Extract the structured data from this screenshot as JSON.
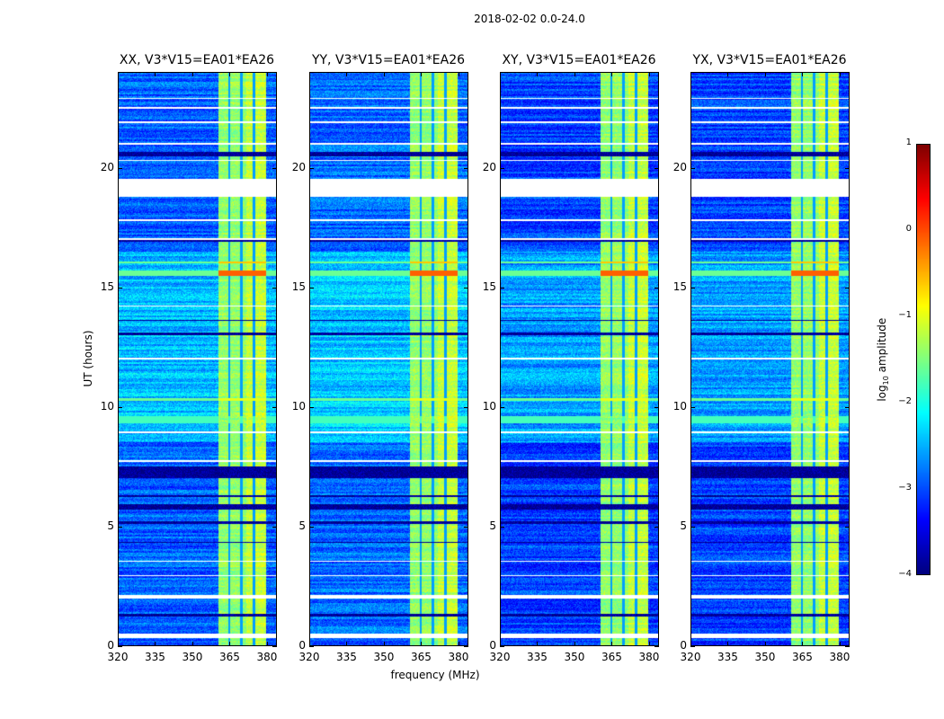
{
  "chart_data": {
    "type": "heatmap",
    "title": "2018-02-02 0.0-24.0",
    "xlabel": "frequency (MHz)",
    "ylabel": "UT (hours)",
    "xlim": [
      320,
      384
    ],
    "ylim": [
      0,
      24
    ],
    "xticks": [
      "320",
      "335",
      "350",
      "365",
      "380"
    ],
    "xtick_values": [
      320,
      335,
      350,
      365,
      380
    ],
    "yticks": [
      "0",
      "5",
      "10",
      "15",
      "20"
    ],
    "ytick_values": [
      0,
      5,
      10,
      15,
      20
    ],
    "panels": [
      {
        "title": "XX, V3*V15=EA01*EA26",
        "base": -2.9
      },
      {
        "title": "YY, V3*V15=EA01*EA26",
        "base": -2.85
      },
      {
        "title": "XY, V3*V15=EA01*EA26",
        "base": -3.05
      },
      {
        "title": "YX, V3*V15=EA01*EA26",
        "base": -3.05
      }
    ],
    "bright_band_mhz": [
      360.5,
      380
    ],
    "subband_edges_mhz": [
      365,
      370,
      375
    ],
    "flagged_hours": [
      [
        0.3,
        0.5
      ],
      [
        1.95,
        2.1
      ],
      [
        18.8,
        19.55
      ],
      [
        2.9,
        2.95
      ],
      [
        3.5,
        3.55
      ],
      [
        7.7,
        7.75
      ],
      [
        8.9,
        8.95
      ],
      [
        12.0,
        12.05
      ],
      [
        14.2,
        14.25
      ],
      [
        17.0,
        17.05
      ],
      [
        17.8,
        17.85
      ],
      [
        20.3,
        20.35
      ],
      [
        21.0,
        21.05
      ],
      [
        21.9,
        21.95
      ],
      [
        22.5,
        22.55
      ],
      [
        22.9,
        22.95
      ]
    ],
    "dark_rows_hours": [
      [
        1.2,
        1.3
      ],
      [
        4.3,
        4.35
      ],
      [
        5.1,
        5.2
      ],
      [
        5.7,
        5.9
      ],
      [
        6.2,
        6.3
      ],
      [
        7.0,
        7.5
      ],
      [
        13.0,
        13.1
      ],
      [
        13.6,
        13.65
      ],
      [
        16.9,
        17.0
      ],
      [
        18.85,
        18.9
      ],
      [
        20.5,
        20.7
      ]
    ],
    "bright_rows_hours": [
      [
        10.25,
        10.35,
        -1.0
      ],
      [
        15.5,
        15.7,
        -0.1
      ],
      [
        16.0,
        16.1,
        -0.6
      ],
      [
        9.3,
        9.6,
        -1.8
      ]
    ],
    "brighter_region_hours": [
      [
        8.5,
        16.5
      ]
    ],
    "colorbar": {
      "label": "log10 amplitude",
      "label_main": "log",
      "label_sub": "10",
      "label_rest": " amplitude",
      "range": [
        -4,
        1
      ],
      "ticks": [
        "1",
        "0",
        "−1",
        "−2",
        "−3",
        "−4"
      ],
      "tick_values": [
        1,
        0,
        -1,
        -2,
        -3,
        -4
      ],
      "colormap": "jet"
    }
  }
}
